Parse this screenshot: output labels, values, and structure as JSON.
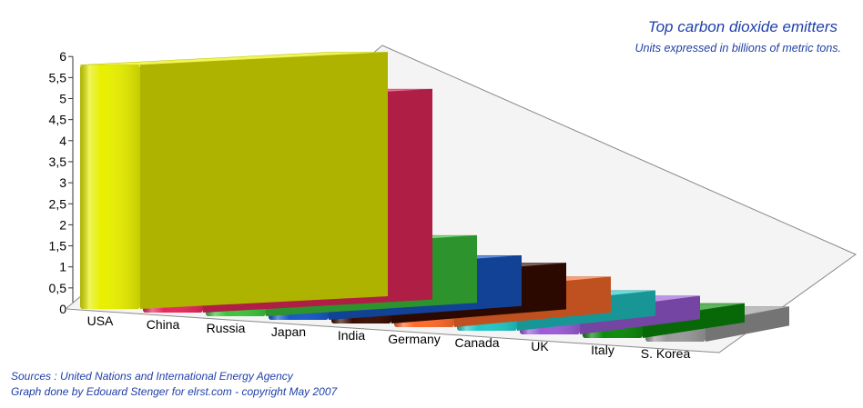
{
  "chart_data": {
    "type": "bar",
    "title": "Top carbon dioxide emitters",
    "subtitle": "Units expressed in billions of metric tons.",
    "categories": [
      "USA",
      "China",
      "Russia",
      "Japan",
      "India",
      "Germany",
      "Canada",
      "UK",
      "Italy",
      "S. Korea"
    ],
    "values": [
      5.8,
      5.0,
      1.6,
      1.2,
      1.1,
      0.85,
      0.6,
      0.55,
      0.45,
      0.45
    ],
    "colors": [
      "#e8ef00",
      "#e8285c",
      "#3cc43c",
      "#1858c8",
      "#3a0c00",
      "#ff6a2a",
      "#20c8c8",
      "#9a5cd8",
      "#0a8a0a",
      "#9a9a9a"
    ],
    "yticks": [
      "0",
      "0,5",
      "1",
      "1,5",
      "2",
      "2,5",
      "3",
      "3,5",
      "4",
      "4,5",
      "5",
      "5,5",
      "6"
    ],
    "ylim": [
      0,
      6
    ],
    "grid": false,
    "legend": "none"
  },
  "footer": {
    "sources": "Sources : United Nations and International Energy Agency",
    "credit": "Graph done by Edouard Stenger for elrst.com - copyright May 2007"
  }
}
